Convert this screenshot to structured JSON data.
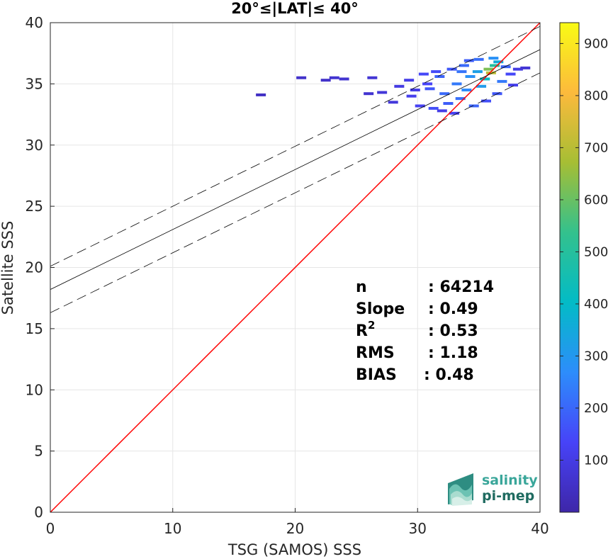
{
  "chart_data": {
    "type": "heatmap",
    "title": "20°≤|LAT|≤ 40°",
    "xlabel": "TSG (SAMOS) SSS",
    "ylabel": "Satellite SSS",
    "xlim": [
      0,
      40
    ],
    "ylim": [
      0,
      40
    ],
    "xticks": [
      0,
      10,
      20,
      30,
      40
    ],
    "yticks": [
      0,
      5,
      10,
      15,
      20,
      25,
      30,
      35,
      40
    ],
    "grid": true,
    "colorbar": {
      "colormap": "parula",
      "range": [
        0,
        940
      ],
      "ticks": [
        100,
        200,
        300,
        400,
        500,
        600,
        700,
        800,
        900
      ],
      "colors": [
        "#3e26a8",
        "#4743f8",
        "#2d8dfb",
        "#03bbc6",
        "#33c18d",
        "#a6be34",
        "#fcba3c",
        "#f9fb15"
      ]
    },
    "identity_line": {
      "color": "#ff0000",
      "x": [
        0,
        40
      ],
      "y": [
        0,
        40
      ]
    },
    "fit_line": {
      "intercept": 18.2,
      "slope": 0.49,
      "x": [
        0,
        40
      ],
      "color": "#000000"
    },
    "confidence_lines": {
      "offset": 1.9,
      "style": "dashed"
    },
    "density_cells": [
      {
        "x": 20.5,
        "y": 35.5,
        "count": 2
      },
      {
        "x": 22.5,
        "y": 35.3,
        "count": 2
      },
      {
        "x": 23.2,
        "y": 35.5,
        "count": 3
      },
      {
        "x": 24.0,
        "y": 35.4,
        "count": 3
      },
      {
        "x": 17.2,
        "y": 34.1,
        "count": 1
      },
      {
        "x": 26.3,
        "y": 35.5,
        "count": 4
      },
      {
        "x": 27.1,
        "y": 34.3,
        "count": 5
      },
      {
        "x": 26.0,
        "y": 34.2,
        "count": 3
      },
      {
        "x": 28.0,
        "y": 33.5,
        "count": 6
      },
      {
        "x": 28.5,
        "y": 34.8,
        "count": 8
      },
      {
        "x": 29.3,
        "y": 35.3,
        "count": 10
      },
      {
        "x": 29.5,
        "y": 34.0,
        "count": 12
      },
      {
        "x": 30.2,
        "y": 33.2,
        "count": 15
      },
      {
        "x": 30.5,
        "y": 35.8,
        "count": 20
      },
      {
        "x": 31.0,
        "y": 34.6,
        "count": 30
      },
      {
        "x": 31.3,
        "y": 33.0,
        "count": 25
      },
      {
        "x": 31.8,
        "y": 35.6,
        "count": 40
      },
      {
        "x": 32.2,
        "y": 34.2,
        "count": 45
      },
      {
        "x": 32.5,
        "y": 33.4,
        "count": 35
      },
      {
        "x": 32.8,
        "y": 36.2,
        "count": 30
      },
      {
        "x": 33.2,
        "y": 35.0,
        "count": 60
      },
      {
        "x": 33.5,
        "y": 33.8,
        "count": 50
      },
      {
        "x": 33.8,
        "y": 36.5,
        "count": 45
      },
      {
        "x": 34.0,
        "y": 34.5,
        "count": 80
      },
      {
        "x": 34.3,
        "y": 35.6,
        "count": 90
      },
      {
        "x": 34.6,
        "y": 33.2,
        "count": 40
      },
      {
        "x": 34.9,
        "y": 36.0,
        "count": 120
      },
      {
        "x": 35.2,
        "y": 34.8,
        "count": 110
      },
      {
        "x": 35.5,
        "y": 35.4,
        "count": 200
      },
      {
        "x": 35.8,
        "y": 36.2,
        "count": 480
      },
      {
        "x": 36.0,
        "y": 35.9,
        "count": 620
      },
      {
        "x": 36.3,
        "y": 36.5,
        "count": 300
      },
      {
        "x": 36.6,
        "y": 36.8,
        "count": 150
      },
      {
        "x": 36.9,
        "y": 35.2,
        "count": 60
      },
      {
        "x": 37.2,
        "y": 36.4,
        "count": 40
      },
      {
        "x": 37.6,
        "y": 35.8,
        "count": 20
      },
      {
        "x": 38.2,
        "y": 36.2,
        "count": 8
      },
      {
        "x": 38.8,
        "y": 36.3,
        "count": 4
      },
      {
        "x": 37.8,
        "y": 34.9,
        "count": 12
      },
      {
        "x": 36.5,
        "y": 34.2,
        "count": 30
      },
      {
        "x": 35.6,
        "y": 33.6,
        "count": 25
      },
      {
        "x": 33.0,
        "y": 32.6,
        "count": 15
      },
      {
        "x": 32.0,
        "y": 32.8,
        "count": 10
      },
      {
        "x": 30.8,
        "y": 35.0,
        "count": 18
      },
      {
        "x": 34.2,
        "y": 36.9,
        "count": 35
      },
      {
        "x": 35.0,
        "y": 37.0,
        "count": 50
      },
      {
        "x": 36.2,
        "y": 37.1,
        "count": 90
      },
      {
        "x": 33.6,
        "y": 36.0,
        "count": 55
      },
      {
        "x": 31.5,
        "y": 36.0,
        "count": 22
      },
      {
        "x": 29.8,
        "y": 34.5,
        "count": 9
      }
    ],
    "stats": [
      {
        "label": "n",
        "value": ": 64214"
      },
      {
        "label": "Slope",
        "value": ": 0.49"
      },
      {
        "label": "R",
        "sup": "2",
        "value": ": 0.53"
      },
      {
        "label": "RMS",
        "value": ": 1.18"
      },
      {
        "label": "BIAS",
        "value": ": 0.48"
      }
    ]
  },
  "logo": {
    "line1": "salinity",
    "line2": "pi-mep",
    "color1": "#3aa69a",
    "color2": "#1f6b60"
  }
}
